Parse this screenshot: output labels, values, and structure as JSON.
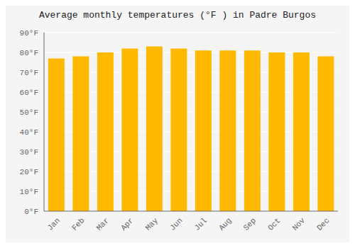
{
  "chart_data": {
    "type": "bar",
    "title": "Average monthly temperatures (°F ) in Padre Burgos",
    "categories": [
      "Jan",
      "Feb",
      "Mar",
      "Apr",
      "May",
      "Jun",
      "Jul",
      "Aug",
      "Sep",
      "Oct",
      "Nov",
      "Dec"
    ],
    "values": [
      77,
      78,
      80,
      82,
      83,
      82,
      81,
      81,
      81,
      80,
      80,
      78
    ],
    "color": "#ffb900",
    "ylim": [
      0,
      90
    ],
    "yticks": [
      {
        "value": 0,
        "label": "0°F"
      },
      {
        "value": 10,
        "label": "10°F"
      },
      {
        "value": 20,
        "label": "20°F"
      },
      {
        "value": 30,
        "label": "30°F"
      },
      {
        "value": 40,
        "label": "40°F"
      },
      {
        "value": 50,
        "label": "50°F"
      },
      {
        "value": 60,
        "label": "60°F"
      },
      {
        "value": 70,
        "label": "70°F"
      },
      {
        "value": 80,
        "label": "80°F"
      },
      {
        "value": 90,
        "label": "90°F"
      }
    ],
    "grid": true
  }
}
